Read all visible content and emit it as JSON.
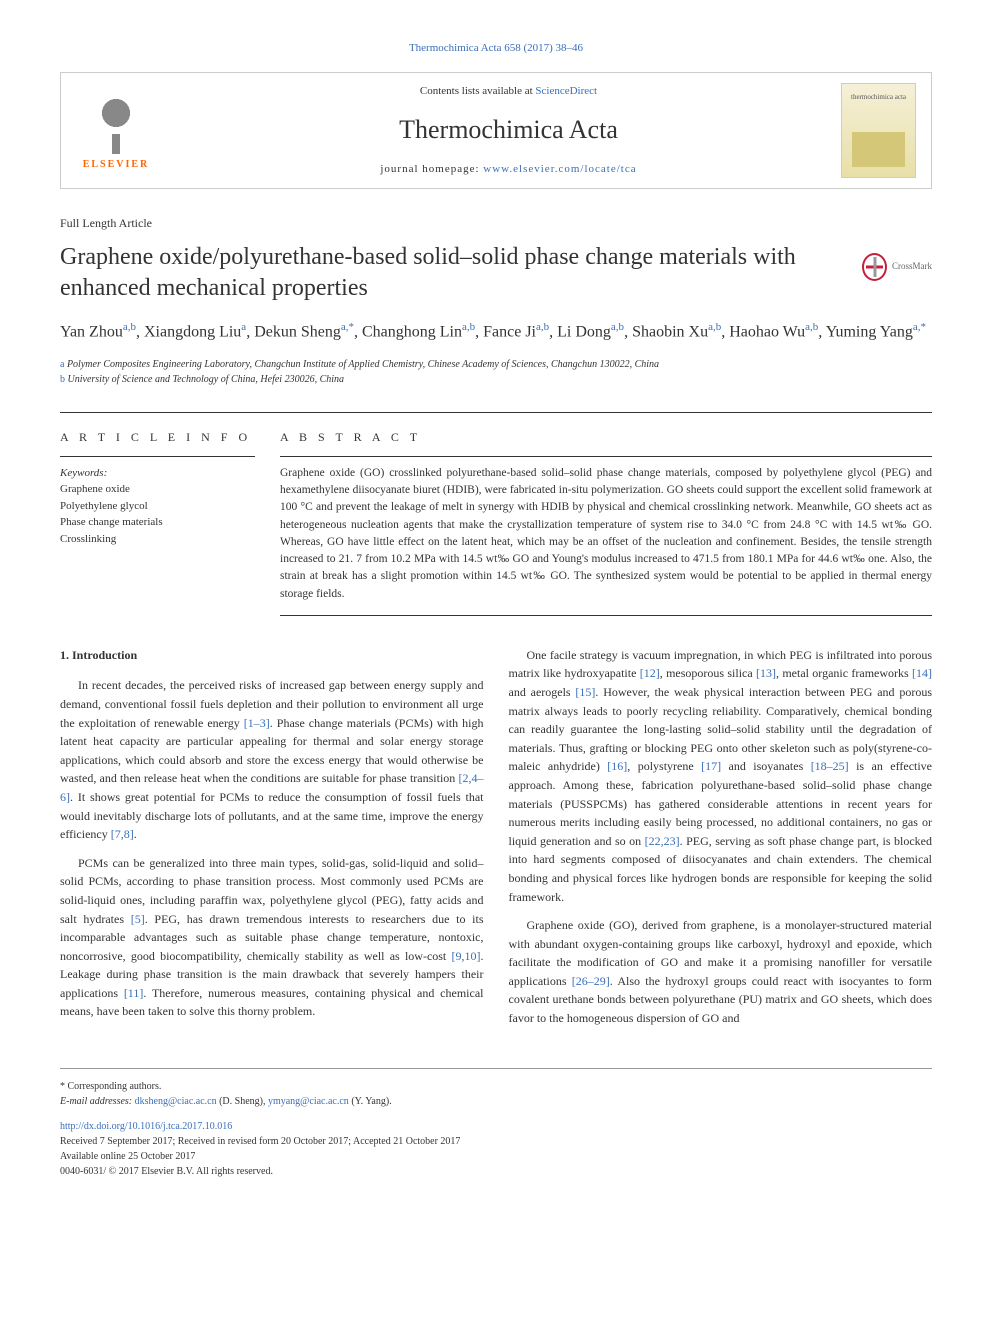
{
  "top_link": {
    "prefix": "",
    "journal_text": "Thermochimica Acta 658 (2017) 38–46"
  },
  "header": {
    "contents_prefix": "Contents lists available at ",
    "contents_link": "ScienceDirect",
    "journal_name": "Thermochimica Acta",
    "homepage_prefix": "journal homepage: ",
    "homepage_link": "www.elsevier.com/locate/tca",
    "elsevier_label": "ELSEVIER",
    "cover_text": "thermochimica acta"
  },
  "article_type": "Full Length Article",
  "title": "Graphene oxide/polyurethane-based solid–solid phase change materials with enhanced mechanical properties",
  "crossmark_label": "CrossMark",
  "authors_html": "Yan Zhou|a,b|, Xiangdong Liu|a|, Dekun Sheng|a,*|, Changhong Lin|a,b|, Fance Ji|a,b|, Li Dong|a,b|, Shaobin Xu|a,b|, Haohao Wu|a,b|, Yuming Yang|a,*|",
  "affiliations": {
    "a": "Polymer Composites Engineering Laboratory, Changchun Institute of Applied Chemistry, Chinese Academy of Sciences, Changchun 130022, China",
    "b": "University of Science and Technology of China, Hefei 230026, China"
  },
  "article_info": {
    "heading": "A R T I C L E  I N F O",
    "keywords_label": "Keywords:",
    "keywords": [
      "Graphene oxide",
      "Polyethylene glycol",
      "Phase change materials",
      "Crosslinking"
    ]
  },
  "abstract": {
    "heading": "A B S T R A C T",
    "text": "Graphene oxide (GO) crosslinked polyurethane-based solid–solid phase change materials, composed by polyethylene glycol (PEG) and hexamethylene diisocyanate biuret (HDIB), were fabricated in-situ polymerization. GO sheets could support the excellent solid framework at 100 °C and prevent the leakage of melt in synergy with HDIB by physical and chemical crosslinking network. Meanwhile, GO sheets act as heterogeneous nucleation agents that make the crystallization temperature of system rise to 34.0 °C from 24.8 °C with 14.5 wt‰ GO. Whereas, GO have little effect on the latent heat, which may be an offset of the nucleation and confinement. Besides, the tensile strength increased to 21. 7 from 10.2 MPa with 14.5 wt‰ GO and Young's modulus increased to 471.5 from 180.1 MPa for 44.6 wt‰ one. Also, the strain at break has a slight promotion within 14.5 wt‰ GO. The synthesized system would be potential to be applied in thermal energy storage fields."
  },
  "introduction": {
    "heading": "1. Introduction",
    "col1": {
      "p1_pre": "In recent decades, the perceived risks of increased gap between energy supply and demand, conventional fossil fuels depletion and their pollution to environment all urge the exploitation of renewable energy ",
      "p1_ref1": "[1–3]",
      "p1_mid": ". Phase change materials (PCMs) with high latent heat capacity are particular appealing for thermal and solar energy storage applications, which could absorb and store the excess energy that would otherwise be wasted, and then release heat when the conditions are suitable for phase transition ",
      "p1_ref2": "[2,4–6]",
      "p1_mid2": ". It shows great potential for PCMs to reduce the consumption of fossil fuels that would inevitably discharge lots of pollutants, and at the same time, improve the energy efficiency ",
      "p1_ref3": "[7,8]",
      "p1_end": ".",
      "p2_pre": "PCMs can be generalized into three main types, solid-gas, solid-liquid and solid–solid PCMs, according to phase transition process. Most commonly used PCMs are solid-liquid ones, including paraffin wax, polyethylene glycol (PEG), fatty acids and salt hydrates ",
      "p2_ref1": "[5]",
      "p2_mid": ". PEG, has drawn tremendous interests to researchers due to its incomparable advantages such as suitable phase change temperature, nontoxic, noncorrosive, good biocompatibility, chemically stability as well as low-cost ",
      "p2_ref2": "[9,10]",
      "p2_mid2": ". Leakage during phase transition is the main drawback that severely hampers their applications ",
      "p2_ref3": "[11]",
      "p2_end": ". Therefore, numerous measures, containing physical and chemical means, have been taken to solve this thorny problem."
    },
    "col2": {
      "p1_pre": "One facile strategy is vacuum impregnation, in which PEG is infiltrated into porous matrix like hydroxyapatite ",
      "p1_ref1": "[12]",
      "p1_m1": ", mesoporous silica ",
      "p1_ref2": "[13]",
      "p1_m2": ", metal organic frameworks ",
      "p1_ref3": "[14]",
      "p1_m3": " and aerogels ",
      "p1_ref4": "[15]",
      "p1_m4": ". However, the weak physical interaction between PEG and porous matrix always leads to poorly recycling reliability. Comparatively, chemical bonding can readily guarantee the long-lasting solid–solid stability until the degradation of materials. Thus, grafting or blocking PEG onto other skeleton such as poly(styrene-co-maleic anhydride) ",
      "p1_ref5": "[16]",
      "p1_m5": ", polystyrene ",
      "p1_ref6": "[17]",
      "p1_m6": " and isoyanates ",
      "p1_ref7": "[18–25]",
      "p1_m7": " is an effective approach. Among these, fabrication polyurethane-based solid–solid phase change materials (PUSSPCMs) has gathered considerable attentions in recent years for numerous merits including easily being processed, no additional containers, no gas or liquid generation and so on ",
      "p1_ref8": "[22,23]",
      "p1_end": ". PEG, serving as soft phase change part, is blocked into hard segments composed of diisocyanates and chain extenders. The chemical bonding and physical forces like hydrogen bonds are responsible for keeping the solid framework.",
      "p2_pre": "Graphene oxide (GO), derived from graphene, is a monolayer-structured material with abundant oxygen-containing groups like carboxyl, hydroxyl and epoxide, which facilitate the modification of GO and make it a promising nanofiller for versatile applications ",
      "p2_ref1": "[26–29]",
      "p2_end": ". Also the hydroxyl groups could react with isocyantes to form covalent urethane bonds between polyurethane (PU) matrix and GO sheets, which does favor to the homogeneous dispersion of GO and"
    }
  },
  "footer": {
    "corresp_label": "* Corresponding authors.",
    "email_label": "E-mail addresses: ",
    "email1": "dksheng@ciac.ac.cn",
    "email1_name": " (D. Sheng), ",
    "email2": "ymyang@ciac.ac.cn",
    "email2_name": " (Y. Yang).",
    "doi": "http://dx.doi.org/10.1016/j.tca.2017.10.016",
    "received": "Received 7 September 2017; Received in revised form 20 October 2017; Accepted 21 October 2017",
    "available": "Available online 25 October 2017",
    "copyright": "0040-6031/ © 2017 Elsevier B.V. All rights reserved."
  }
}
